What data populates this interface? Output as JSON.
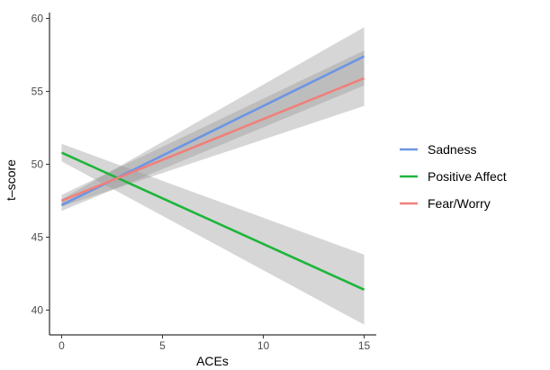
{
  "chart_data": {
    "type": "line",
    "title": "",
    "xlabel": "ACEs",
    "ylabel": "t–score",
    "xlim": [
      -0.6,
      15.6
    ],
    "ylim": [
      38.3,
      60.4
    ],
    "xticks": [
      0,
      5,
      10,
      15
    ],
    "yticks": [
      40,
      45,
      50,
      55,
      60
    ],
    "grid": false,
    "legend_position": "right",
    "series": [
      {
        "name": "Sadness",
        "color": "#6D95E3",
        "x": [
          0,
          15
        ],
        "y": [
          47.2,
          57.4
        ],
        "ci_lower": [
          46.8,
          55.4
        ],
        "ci_upper": [
          47.6,
          59.4
        ]
      },
      {
        "name": "Positive Affect",
        "color": "#1EB53A",
        "x": [
          0,
          15
        ],
        "y": [
          50.8,
          41.4
        ],
        "ci_lower": [
          50.2,
          39.0
        ],
        "ci_upper": [
          51.4,
          43.8
        ]
      },
      {
        "name": "Fear/Worry",
        "color": "#F0807A",
        "x": [
          0,
          15
        ],
        "y": [
          47.5,
          55.9
        ],
        "ci_lower": [
          47.1,
          54.0
        ],
        "ci_upper": [
          47.9,
          57.8
        ]
      }
    ]
  }
}
